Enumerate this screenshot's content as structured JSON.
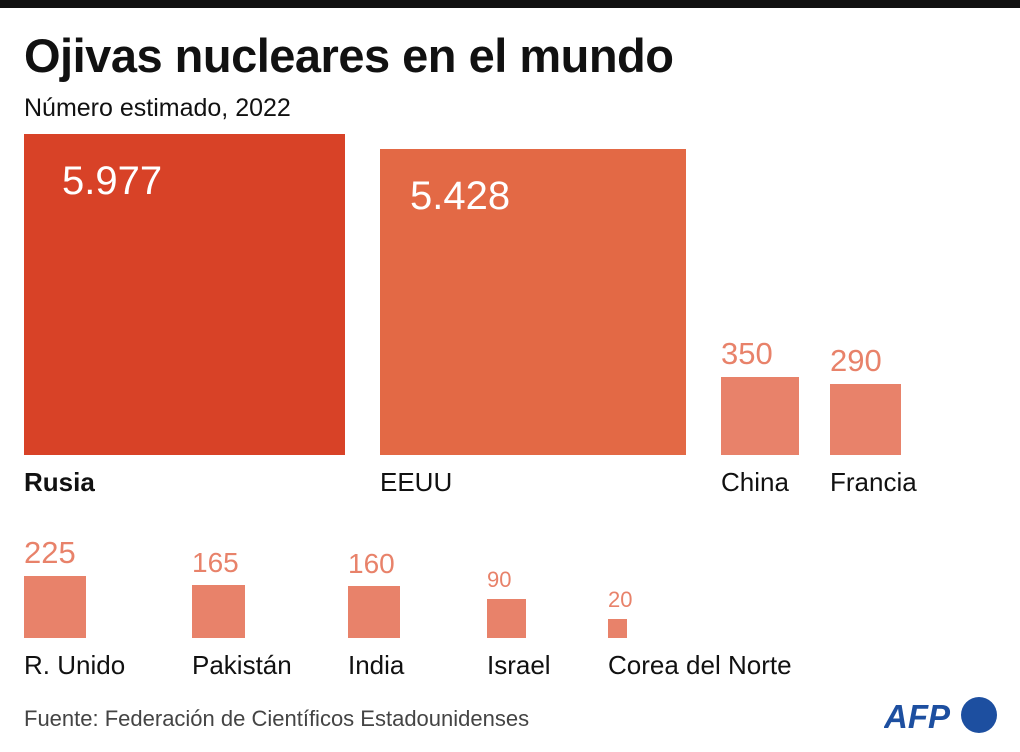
{
  "title": "Ojivas nucleares en el mundo",
  "subtitle": "Número estimado, 2022",
  "source": "Fuente: Federación de Científicos Estadounidenses",
  "logo": "AFP",
  "colors": {
    "rusia": "#d84227",
    "eeuu": "#e36945",
    "others": "#e8826a",
    "inside_label": "#ffffff"
  },
  "chart_data": {
    "type": "proportional-area-squares",
    "title": "Ojivas nucleares en el mundo",
    "subtitle": "Número estimado, 2022",
    "categories": [
      "Rusia",
      "EEUU",
      "China",
      "Francia",
      "R. Unido",
      "Pakistán",
      "India",
      "Israel",
      "Corea del Norte"
    ],
    "values": [
      5977,
      5428,
      350,
      290,
      225,
      165,
      160,
      90,
      20
    ],
    "value_labels": [
      "5.977",
      "5.428",
      "350",
      "290",
      "225",
      "165",
      "160",
      "90",
      "20"
    ]
  }
}
